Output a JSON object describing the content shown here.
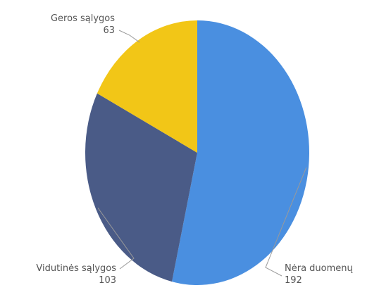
{
  "chart_data": {
    "type": "pie",
    "slices": [
      {
        "label": "Nėra duomenų",
        "value": 192,
        "color": "#4a8fe0"
      },
      {
        "label": "Vidutinės sąlygos",
        "value": 103,
        "color": "#4a5b87"
      },
      {
        "label": "Geros sąlygos",
        "value": 63,
        "color": "#f2c617"
      }
    ],
    "title": "",
    "legend": "none",
    "data_labels": "outside-with-leader-lines"
  }
}
